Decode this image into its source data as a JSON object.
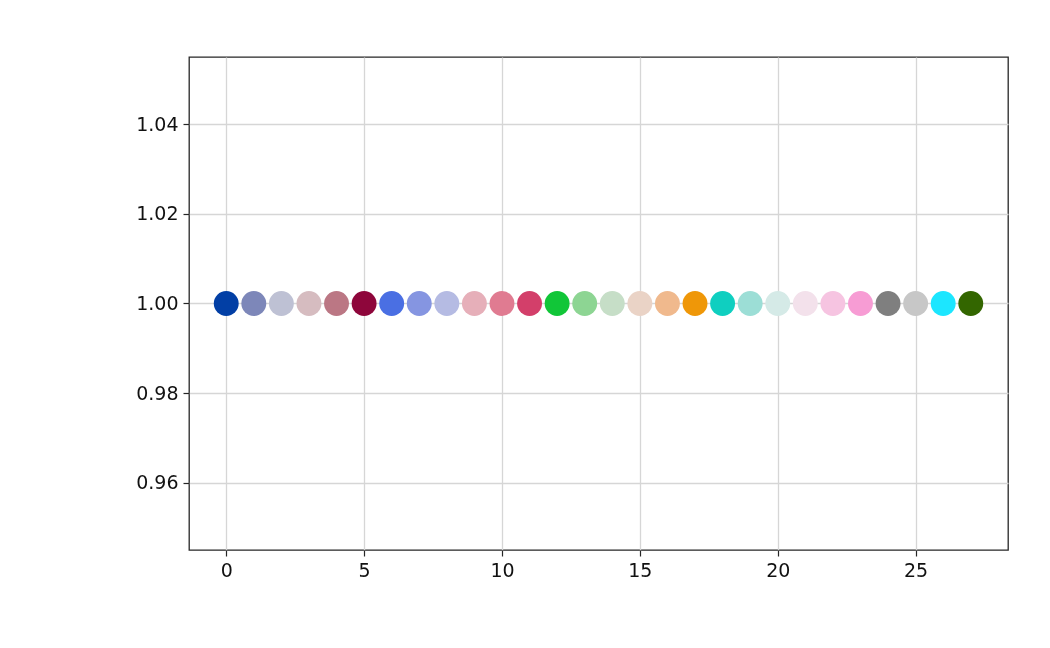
{
  "chart_data": {
    "type": "scatter",
    "x": [
      0,
      1,
      2,
      3,
      4,
      5,
      6,
      7,
      8,
      9,
      10,
      11,
      12,
      13,
      14,
      15,
      16,
      17,
      18,
      19,
      20,
      21,
      22,
      23,
      24,
      25,
      26,
      27
    ],
    "values": [
      1,
      1,
      1,
      1,
      1,
      1,
      1,
      1,
      1,
      1,
      1,
      1,
      1,
      1,
      1,
      1,
      1,
      1,
      1,
      1,
      1,
      1,
      1,
      1,
      1,
      1,
      1,
      1
    ],
    "colors": [
      "#023fa5",
      "#7d87b9",
      "#bec1d4",
      "#d6bcc0",
      "#bb7784",
      "#8e063b",
      "#4a6fe3",
      "#8595e1",
      "#b5bbe3",
      "#e6afb9",
      "#e07b91",
      "#d33f6a",
      "#11c638",
      "#8dd593",
      "#c6dec7",
      "#ead3c6",
      "#f0b98d",
      "#ef9708",
      "#0fcfc0",
      "#9cded6",
      "#d5eae7",
      "#f3e1eb",
      "#f6c4e1",
      "#f79cd4",
      "#7f7f7f",
      "#c7c7c7",
      "#1ce6ff",
      "#336600"
    ],
    "xlim": [
      -1.35,
      28.35
    ],
    "xticks": [
      0,
      5,
      10,
      15,
      20,
      25
    ],
    "ylim": [
      0.945,
      1.055
    ],
    "yticks": [
      0.96,
      0.98,
      {
        "value": 1,
        "label": "1.00"
      },
      1.02,
      1.04
    ],
    "grid": true,
    "marker": "circle"
  }
}
